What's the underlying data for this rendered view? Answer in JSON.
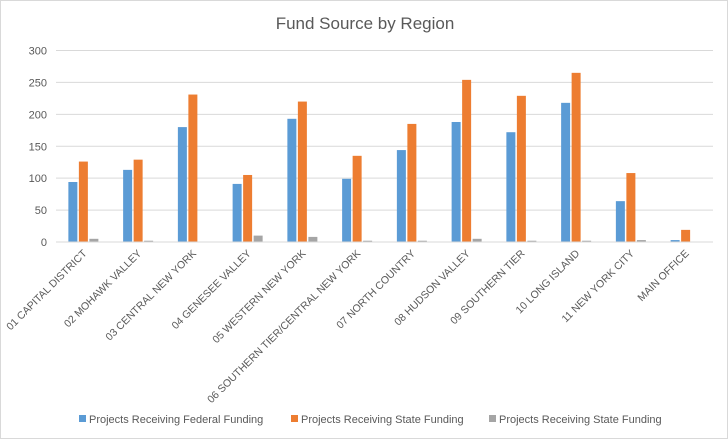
{
  "chart_data": {
    "type": "bar",
    "title": "Fund Source by Region",
    "xlabel": "",
    "ylabel": "",
    "ylim": [
      0,
      300
    ],
    "yticks": [
      0,
      50,
      100,
      150,
      200,
      250,
      300
    ],
    "grid": true,
    "legend_position": "bottom",
    "categories": [
      "01 CAPITAL DISTRICT",
      "02 MOHAWK VALLEY",
      "03 CENTRAL NEW YORK",
      "04 GENESEE VALLEY",
      "05 WESTERN NEW YORK",
      "06 SOUTHERN TIER/CENTRAL NEW YORK",
      "07 NORTH COUNTRY",
      "08 HUDSON VALLEY",
      "09 SOUTHERN TIER",
      "10 LONG ISLAND",
      "11 NEW YORK CITY",
      "MAIN OFFICE"
    ],
    "series": [
      {
        "name": "Projects Receiving  Federal Funding",
        "color": "#5b9bd5",
        "values": [
          94,
          113,
          180,
          91,
          193,
          99,
          144,
          188,
          172,
          218,
          64,
          3
        ]
      },
      {
        "name": "Projects Receiving State Funding",
        "color": "#ed7d31",
        "values": [
          126,
          129,
          231,
          105,
          220,
          135,
          185,
          254,
          229,
          265,
          108,
          19
        ]
      },
      {
        "name": "Projects Receiving State Funding",
        "color": "#a5a5a5",
        "values": [
          5,
          2,
          0,
          10,
          8,
          2,
          2,
          5,
          2,
          2,
          3,
          0
        ]
      }
    ]
  }
}
